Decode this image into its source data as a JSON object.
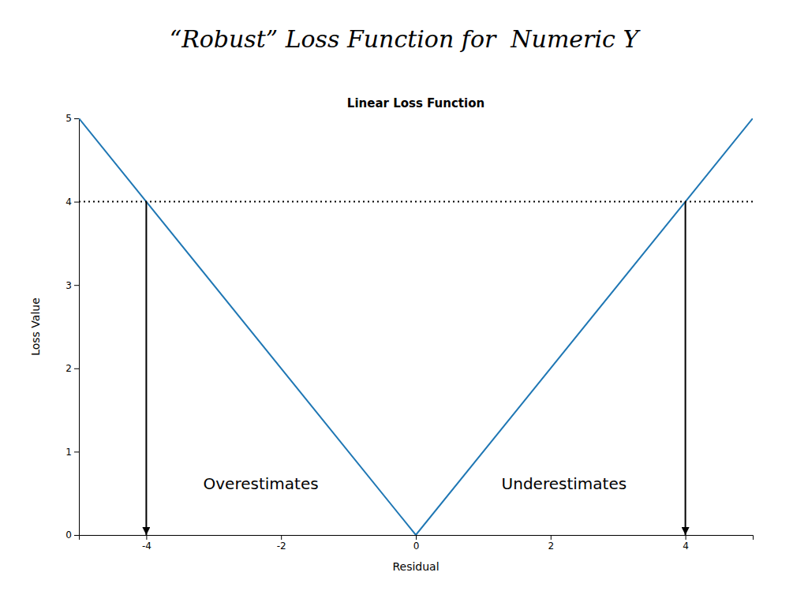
{
  "chart_data": {
    "type": "line",
    "title": "“Robust” Loss Function for  Numeric Y",
    "subtitle": "Linear Loss Function",
    "x_label": "Residual",
    "y_label": "Loss Value",
    "x": [
      -5,
      0,
      5
    ],
    "series": [
      {
        "values": [
          5,
          0,
          5
        ]
      }
    ],
    "xlim": [
      -5,
      5
    ],
    "ylim": [
      0,
      5
    ],
    "xticks": [
      -4,
      -2,
      0,
      2,
      4
    ],
    "yticks": [
      0,
      1,
      2,
      3,
      4,
      5
    ],
    "grid": false,
    "reference_lines": [
      {
        "y": 4,
        "line_style": "dotted"
      }
    ],
    "arrows": [
      {
        "x": -4,
        "y_start": 4,
        "y_end": 0
      },
      {
        "x": 4,
        "y_start": 4,
        "y_end": 0
      }
    ],
    "annotations": [
      {
        "text": "Overestimates",
        "x": -2.3,
        "y": 0.5
      },
      {
        "text": "Underestimates",
        "x": 2.2,
        "y": 0.5
      }
    ]
  }
}
